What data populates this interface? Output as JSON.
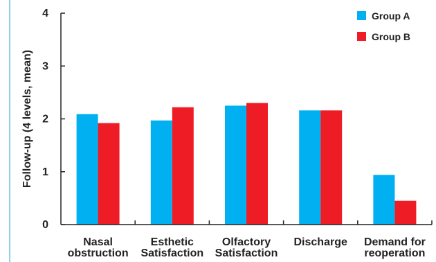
{
  "chart_data": {
    "type": "bar",
    "ylabel": "Follow-up (4 levels, mean)",
    "xlabel": "",
    "ylim": [
      0,
      4
    ],
    "yticks": [
      "0",
      "1",
      "2",
      "3",
      "4"
    ],
    "grid": false,
    "legend_position": "top-right",
    "categories": [
      [
        "Nasal",
        "obstruction"
      ],
      [
        "Esthetic",
        "Satisfaction"
      ],
      [
        "Olfactory",
        "Satisfaction"
      ],
      [
        "Discharge"
      ],
      [
        "Demand for",
        "reoperation"
      ]
    ],
    "series": [
      {
        "name": "Group A",
        "color": "#00b0f0",
        "values": [
          2.09,
          1.97,
          2.25,
          2.16,
          0.94
        ]
      },
      {
        "name": "Group B",
        "color": "#ee1c25",
        "values": [
          1.92,
          2.22,
          2.3,
          2.16,
          0.45
        ]
      }
    ]
  }
}
